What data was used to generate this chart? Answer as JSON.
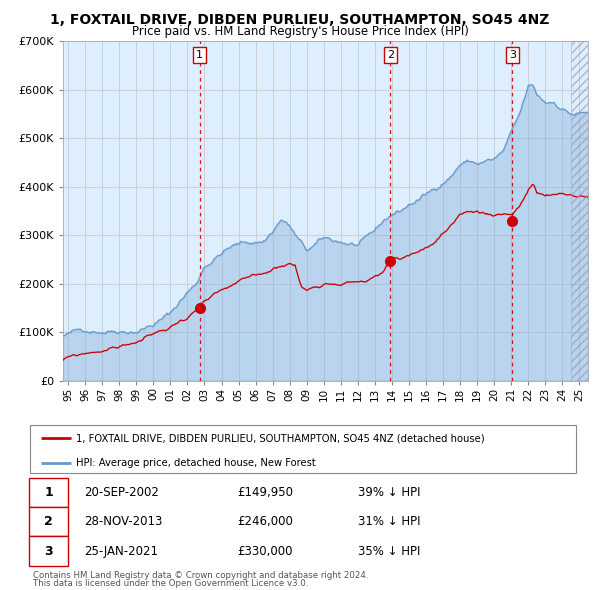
{
  "title": "1, FOXTAIL DRIVE, DIBDEN PURLIEU, SOUTHAMPTON, SO45 4NZ",
  "subtitle": "Price paid vs. HM Land Registry's House Price Index (HPI)",
  "legend_line1": "1, FOXTAIL DRIVE, DIBDEN PURLIEU, SOUTHAMPTON, SO45 4NZ (detached house)",
  "legend_line2": "HPI: Average price, detached house, New Forest",
  "footer1": "Contains HM Land Registry data © Crown copyright and database right 2024.",
  "footer2": "This data is licensed under the Open Government Licence v3.0.",
  "transactions": [
    {
      "num": "1",
      "date": "20-SEP-2002",
      "price": "£149,950",
      "pct": "39% ↓ HPI",
      "date_val": 2002.72,
      "price_val": 149950
    },
    {
      "num": "2",
      "date": "28-NOV-2013",
      "price": "£246,000",
      "pct": "31% ↓ HPI",
      "date_val": 2013.91,
      "price_val": 246000
    },
    {
      "num": "3",
      "date": "25-JAN-2021",
      "price": "£330,000",
      "pct": "35% ↓ HPI",
      "date_val": 2021.07,
      "price_val": 330000
    }
  ],
  "red_color": "#cc0000",
  "blue_color": "#6699cc",
  "bg_color": "#ddeeff",
  "grid_color": "#cccccc",
  "ylim": [
    0,
    700000
  ],
  "xlim_start": 1994.7,
  "xlim_end": 2025.5,
  "hpi_anchors": [
    [
      1994.7,
      92000
    ],
    [
      1995.0,
      95000
    ],
    [
      1996.0,
      103000
    ],
    [
      1997.0,
      108000
    ],
    [
      1998.0,
      115000
    ],
    [
      1999.0,
      120000
    ],
    [
      2000.0,
      135000
    ],
    [
      2001.0,
      155000
    ],
    [
      2002.0,
      200000
    ],
    [
      2002.5,
      215000
    ],
    [
      2003.0,
      255000
    ],
    [
      2003.5,
      270000
    ],
    [
      2004.0,
      285000
    ],
    [
      2004.5,
      295000
    ],
    [
      2005.0,
      300000
    ],
    [
      2005.5,
      302000
    ],
    [
      2006.0,
      305000
    ],
    [
      2006.5,
      308000
    ],
    [
      2007.0,
      330000
    ],
    [
      2007.5,
      355000
    ],
    [
      2008.0,
      340000
    ],
    [
      2008.5,
      310000
    ],
    [
      2009.0,
      285000
    ],
    [
      2009.5,
      295000
    ],
    [
      2010.0,
      305000
    ],
    [
      2010.5,
      300000
    ],
    [
      2011.0,
      298000
    ],
    [
      2011.5,
      295000
    ],
    [
      2012.0,
      292000
    ],
    [
      2012.5,
      298000
    ],
    [
      2013.0,
      310000
    ],
    [
      2013.5,
      330000
    ],
    [
      2014.0,
      345000
    ],
    [
      2014.5,
      352000
    ],
    [
      2015.0,
      365000
    ],
    [
      2015.5,
      375000
    ],
    [
      2016.0,
      385000
    ],
    [
      2016.5,
      395000
    ],
    [
      2017.0,
      415000
    ],
    [
      2017.5,
      430000
    ],
    [
      2018.0,
      455000
    ],
    [
      2018.5,
      460000
    ],
    [
      2019.0,
      455000
    ],
    [
      2019.5,
      460000
    ],
    [
      2020.0,
      462000
    ],
    [
      2020.5,
      475000
    ],
    [
      2021.0,
      510000
    ],
    [
      2021.5,
      545000
    ],
    [
      2022.0,
      600000
    ],
    [
      2022.3,
      598000
    ],
    [
      2022.5,
      580000
    ],
    [
      2023.0,
      565000
    ],
    [
      2023.5,
      568000
    ],
    [
      2024.0,
      558000
    ],
    [
      2024.5,
      548000
    ],
    [
      2025.0,
      548000
    ],
    [
      2025.5,
      548000
    ]
  ],
  "red_anchors": [
    [
      1994.7,
      42000
    ],
    [
      1995.0,
      45000
    ],
    [
      1996.0,
      52000
    ],
    [
      1997.0,
      60000
    ],
    [
      1998.0,
      68000
    ],
    [
      1999.0,
      78000
    ],
    [
      2000.0,
      92000
    ],
    [
      2001.0,
      105000
    ],
    [
      2001.5,
      118000
    ],
    [
      2002.0,
      128000
    ],
    [
      2002.72,
      149950
    ],
    [
      2003.0,
      158000
    ],
    [
      2003.5,
      165000
    ],
    [
      2004.0,
      172000
    ],
    [
      2004.5,
      178000
    ],
    [
      2005.0,
      185000
    ],
    [
      2005.5,
      190000
    ],
    [
      2006.0,
      195000
    ],
    [
      2006.5,
      200000
    ],
    [
      2007.0,
      210000
    ],
    [
      2007.5,
      220000
    ],
    [
      2008.0,
      225000
    ],
    [
      2008.3,
      222000
    ],
    [
      2008.7,
      175000
    ],
    [
      2009.0,
      170000
    ],
    [
      2009.5,
      178000
    ],
    [
      2010.0,
      188000
    ],
    [
      2010.5,
      192000
    ],
    [
      2011.0,
      195000
    ],
    [
      2011.5,
      198000
    ],
    [
      2012.0,
      200000
    ],
    [
      2012.5,
      202000
    ],
    [
      2013.0,
      208000
    ],
    [
      2013.5,
      215000
    ],
    [
      2013.91,
      246000
    ],
    [
      2014.0,
      243000
    ],
    [
      2014.5,
      242000
    ],
    [
      2015.0,
      252000
    ],
    [
      2015.5,
      258000
    ],
    [
      2016.0,
      268000
    ],
    [
      2016.5,
      278000
    ],
    [
      2017.0,
      295000
    ],
    [
      2017.5,
      308000
    ],
    [
      2018.0,
      320000
    ],
    [
      2018.5,
      328000
    ],
    [
      2019.0,
      328000
    ],
    [
      2019.5,
      325000
    ],
    [
      2020.0,
      325000
    ],
    [
      2020.5,
      328000
    ],
    [
      2021.07,
      330000
    ],
    [
      2021.5,
      348000
    ],
    [
      2022.0,
      380000
    ],
    [
      2022.3,
      390000
    ],
    [
      2022.5,
      372000
    ],
    [
      2023.0,
      365000
    ],
    [
      2023.5,
      362000
    ],
    [
      2024.0,
      365000
    ],
    [
      2024.5,
      362000
    ],
    [
      2025.0,
      360000
    ],
    [
      2025.5,
      360000
    ]
  ]
}
